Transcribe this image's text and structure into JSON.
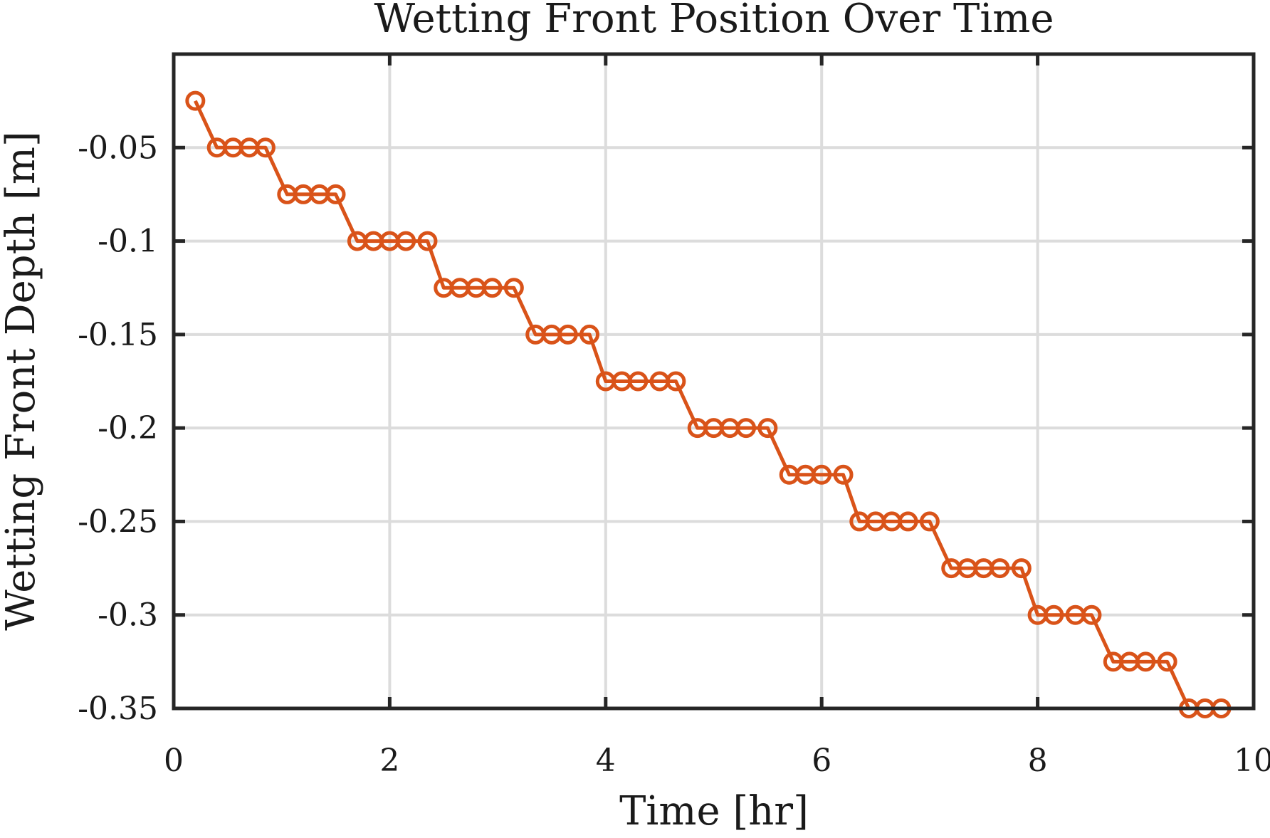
{
  "chart_data": {
    "type": "line",
    "title": "Wetting Front Position Over Time",
    "xlabel": "Time [hr]",
    "ylabel": "Wetting Front Depth [m]",
    "xlim": [
      0,
      10
    ],
    "ylim": [
      -0.35,
      0.0
    ],
    "xticks": [
      0,
      2,
      4,
      6,
      8,
      10
    ],
    "xtick_labels": [
      "0",
      "2",
      "4",
      "6",
      "8",
      "10"
    ],
    "yticks": [
      -0.05,
      -0.1,
      -0.15,
      -0.2,
      -0.25,
      -0.3,
      -0.35
    ],
    "ytick_labels": [
      "-0.05",
      "-0.1",
      "-0.15",
      "-0.2",
      "-0.25",
      "-0.3",
      "-0.35"
    ],
    "grid": true,
    "series": [
      {
        "color": "#d95319",
        "marker": "circle",
        "x": [
          0.2,
          0.4,
          0.55,
          0.7,
          0.85,
          1.05,
          1.2,
          1.35,
          1.5,
          1.7,
          1.85,
          2.0,
          2.15,
          2.35,
          2.5,
          2.65,
          2.8,
          2.95,
          3.15,
          3.35,
          3.5,
          3.65,
          3.85,
          4.0,
          4.15,
          4.3,
          4.5,
          4.65,
          4.85,
          5.0,
          5.15,
          5.3,
          5.5,
          5.7,
          5.85,
          6.0,
          6.2,
          6.35,
          6.5,
          6.65,
          6.8,
          7.0,
          7.2,
          7.35,
          7.5,
          7.65,
          7.85,
          8.0,
          8.15,
          8.35,
          8.5,
          8.7,
          8.85,
          9.0,
          9.2,
          9.4,
          9.55,
          9.7
        ],
        "y": [
          -0.025,
          -0.05,
          -0.05,
          -0.05,
          -0.05,
          -0.075,
          -0.075,
          -0.075,
          -0.075,
          -0.1,
          -0.1,
          -0.1,
          -0.1,
          -0.1,
          -0.125,
          -0.125,
          -0.125,
          -0.125,
          -0.125,
          -0.15,
          -0.15,
          -0.15,
          -0.15,
          -0.175,
          -0.175,
          -0.175,
          -0.175,
          -0.175,
          -0.2,
          -0.2,
          -0.2,
          -0.2,
          -0.2,
          -0.225,
          -0.225,
          -0.225,
          -0.225,
          -0.25,
          -0.25,
          -0.25,
          -0.25,
          -0.25,
          -0.275,
          -0.275,
          -0.275,
          -0.275,
          -0.275,
          -0.3,
          -0.3,
          -0.3,
          -0.3,
          -0.325,
          -0.325,
          -0.325,
          -0.325,
          -0.35,
          -0.35,
          -0.35
        ]
      }
    ]
  }
}
